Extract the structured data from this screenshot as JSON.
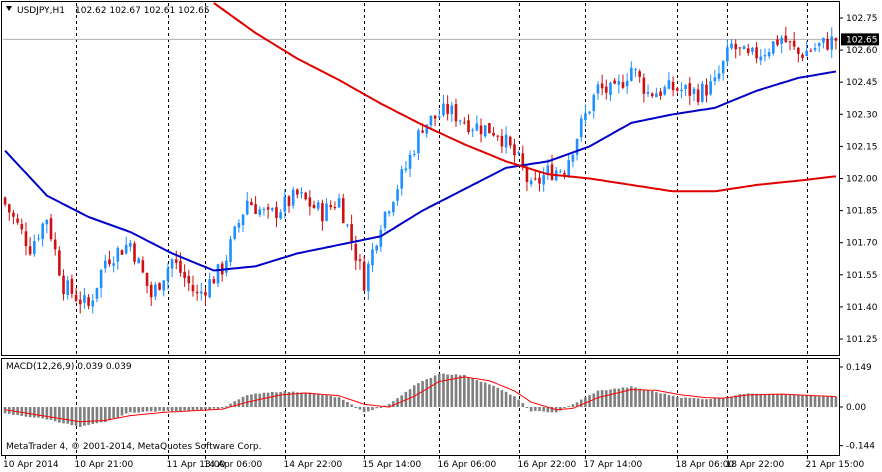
{
  "window": {
    "symbol_title": "USDJPY,H1",
    "ohlc": "102.62 102.67 102.61 102.65"
  },
  "colors": {
    "background": "#FFFFFF",
    "candle_up": "#1E90FF",
    "candle_down": "#D01010",
    "ma_fast": "#0000C8",
    "ma_slow": "#E00000",
    "macd_hist": "#7F7F7F",
    "macd_signal": "#FF0000",
    "grid": "#000000"
  },
  "copyright": "MetaTrader 4, © 2001-2014, MetaQuotes Software Corp.",
  "chart_data": [
    {
      "type": "candlestick",
      "title": "USDJPY,H1",
      "ylim": [
        101.18,
        102.82
      ],
      "y_ticks": [
        "102.75",
        "102.60",
        "102.45",
        "102.30",
        "102.15",
        "102.00",
        "101.85",
        "101.70",
        "101.55",
        "101.40",
        "101.25"
      ],
      "y_tick_values": [
        102.75,
        102.6,
        102.45,
        102.3,
        102.15,
        102.0,
        101.85,
        101.7,
        101.55,
        101.4,
        101.25
      ],
      "current_price_label": "102.65",
      "current_price": 102.65,
      "x_ticks": [
        "10 Apr 2014",
        "10 Apr 21:00",
        "11 Apr 13:00",
        "14 Apr 06:00",
        "14 Apr 22:00",
        "15 Apr 14:00",
        "16 Apr 06:00",
        "16 Apr 22:00",
        "17 Apr 14:00",
        "18 Apr 06:00",
        "18 Apr 22:00",
        "21 Apr 15:00"
      ],
      "bar_count": 200,
      "x_tick_bar_index": [
        0,
        17,
        39,
        48,
        67,
        86,
        104,
        123,
        139,
        161,
        173,
        192
      ],
      "anchors_close": [
        [
          0,
          101.88
        ],
        [
          6,
          101.68
        ],
        [
          10,
          101.82
        ],
        [
          14,
          101.5
        ],
        [
          20,
          101.4
        ],
        [
          24,
          101.62
        ],
        [
          30,
          101.7
        ],
        [
          35,
          101.45
        ],
        [
          40,
          101.62
        ],
        [
          46,
          101.45
        ],
        [
          52,
          101.58
        ],
        [
          58,
          101.9
        ],
        [
          63,
          101.82
        ],
        [
          70,
          101.92
        ],
        [
          76,
          101.84
        ],
        [
          80,
          101.9
        ],
        [
          86,
          101.52
        ],
        [
          90,
          101.8
        ],
        [
          96,
          102.05
        ],
        [
          100,
          102.25
        ],
        [
          106,
          102.32
        ],
        [
          112,
          102.25
        ],
        [
          118,
          102.22
        ],
        [
          123,
          102.08
        ],
        [
          126,
          101.95
        ],
        [
          130,
          102.03
        ],
        [
          134,
          102.05
        ],
        [
          138,
          102.25
        ],
        [
          142,
          102.42
        ],
        [
          146,
          102.4
        ],
        [
          150,
          102.52
        ],
        [
          154,
          102.4
        ],
        [
          160,
          102.42
        ],
        [
          166,
          102.4
        ],
        [
          170,
          102.44
        ],
        [
          174,
          102.62
        ],
        [
          178,
          102.56
        ],
        [
          182,
          102.6
        ],
        [
          186,
          102.66
        ],
        [
          190,
          102.58
        ],
        [
          195,
          102.62
        ],
        [
          199,
          102.65
        ]
      ],
      "ma_fast": [
        [
          0,
          102.13
        ],
        [
          10,
          101.92
        ],
        [
          20,
          101.82
        ],
        [
          30,
          101.75
        ],
        [
          40,
          101.65
        ],
        [
          50,
          101.57
        ],
        [
          60,
          101.59
        ],
        [
          70,
          101.65
        ],
        [
          80,
          101.69
        ],
        [
          90,
          101.73
        ],
        [
          100,
          101.85
        ],
        [
          110,
          101.95
        ],
        [
          120,
          102.05
        ],
        [
          130,
          102.08
        ],
        [
          140,
          102.15
        ],
        [
          150,
          102.26
        ],
        [
          160,
          102.3
        ],
        [
          170,
          102.33
        ],
        [
          180,
          102.41
        ],
        [
          190,
          102.47
        ],
        [
          199,
          102.5
        ]
      ],
      "ma_slow": [
        [
          50,
          102.82
        ],
        [
          60,
          102.68
        ],
        [
          70,
          102.56
        ],
        [
          80,
          102.46
        ],
        [
          90,
          102.35
        ],
        [
          100,
          102.25
        ],
        [
          110,
          102.16
        ],
        [
          120,
          102.08
        ],
        [
          130,
          102.02
        ],
        [
          140,
          102.0
        ],
        [
          150,
          101.97
        ],
        [
          160,
          101.94
        ],
        [
          170,
          101.94
        ],
        [
          180,
          101.97
        ],
        [
          190,
          101.99
        ],
        [
          199,
          102.01
        ]
      ]
    },
    {
      "type": "bar",
      "title": "MACD(12,26,9) 0.039 0.039",
      "ylim": [
        -0.175,
        0.175
      ],
      "y_ticks": [
        "0.149",
        "0.00",
        "-0.144"
      ],
      "y_tick_values": [
        0.149,
        0.0,
        -0.144
      ],
      "macd_anchors": [
        [
          0,
          -0.025
        ],
        [
          10,
          -0.045
        ],
        [
          18,
          -0.075
        ],
        [
          24,
          -0.055
        ],
        [
          30,
          -0.02
        ],
        [
          38,
          -0.015
        ],
        [
          45,
          -0.012
        ],
        [
          52,
          -0.005
        ],
        [
          58,
          0.045
        ],
        [
          66,
          0.058
        ],
        [
          72,
          0.055
        ],
        [
          80,
          0.035
        ],
        [
          86,
          -0.02
        ],
        [
          92,
          0.01
        ],
        [
          98,
          0.08
        ],
        [
          104,
          0.125
        ],
        [
          110,
          0.118
        ],
        [
          116,
          0.085
        ],
        [
          122,
          0.04
        ],
        [
          126,
          -0.015
        ],
        [
          132,
          -0.02
        ],
        [
          136,
          0.01
        ],
        [
          142,
          0.06
        ],
        [
          150,
          0.075
        ],
        [
          156,
          0.055
        ],
        [
          162,
          0.035
        ],
        [
          168,
          0.03
        ],
        [
          172,
          0.035
        ],
        [
          178,
          0.052
        ],
        [
          186,
          0.047
        ],
        [
          194,
          0.04
        ],
        [
          199,
          0.039
        ]
      ],
      "signal_anchors": [
        [
          0,
          -0.01
        ],
        [
          10,
          -0.035
        ],
        [
          18,
          -0.055
        ],
        [
          24,
          -0.05
        ],
        [
          30,
          -0.032
        ],
        [
          38,
          -0.02
        ],
        [
          45,
          -0.014
        ],
        [
          52,
          -0.008
        ],
        [
          58,
          0.018
        ],
        [
          66,
          0.045
        ],
        [
          72,
          0.052
        ],
        [
          80,
          0.042
        ],
        [
          86,
          0.01
        ],
        [
          92,
          0.0
        ],
        [
          98,
          0.04
        ],
        [
          104,
          0.095
        ],
        [
          110,
          0.112
        ],
        [
          116,
          0.098
        ],
        [
          122,
          0.06
        ],
        [
          126,
          0.018
        ],
        [
          132,
          -0.01
        ],
        [
          136,
          -0.005
        ],
        [
          142,
          0.035
        ],
        [
          150,
          0.065
        ],
        [
          156,
          0.062
        ],
        [
          162,
          0.045
        ],
        [
          168,
          0.035
        ],
        [
          172,
          0.033
        ],
        [
          178,
          0.045
        ],
        [
          186,
          0.048
        ],
        [
          194,
          0.042
        ],
        [
          199,
          0.039
        ]
      ]
    }
  ]
}
